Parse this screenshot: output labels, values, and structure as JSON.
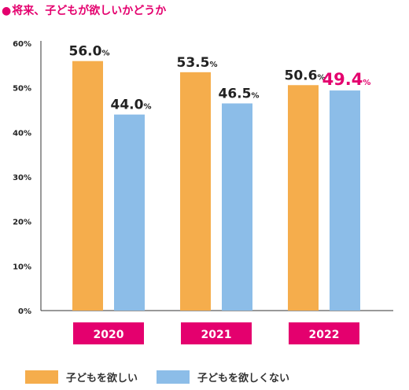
{
  "title": "将来、子どもが欲しいかどうか",
  "title_marker": "●",
  "colors": {
    "want": "#f5ad4c",
    "not_want": "#8cbde8",
    "accent": "#e4006e",
    "axis": "#333333"
  },
  "chart_data": {
    "type": "bar",
    "categories": [
      "2020",
      "2021",
      "2022"
    ],
    "series": [
      {
        "name": "子どもを欲しい",
        "values": [
          56.0,
          53.5,
          50.6
        ]
      },
      {
        "name": "子どもを欲しくない",
        "values": [
          44.0,
          46.5,
          49.4
        ]
      }
    ],
    "highlight": {
      "series": 1,
      "category": 2
    },
    "value_suffix": "%",
    "ylim": [
      0,
      60
    ],
    "yticks": [
      "0%",
      "10%",
      "20%",
      "30%",
      "40%",
      "50%",
      "60%"
    ],
    "grid": false,
    "legend_position": "bottom"
  }
}
